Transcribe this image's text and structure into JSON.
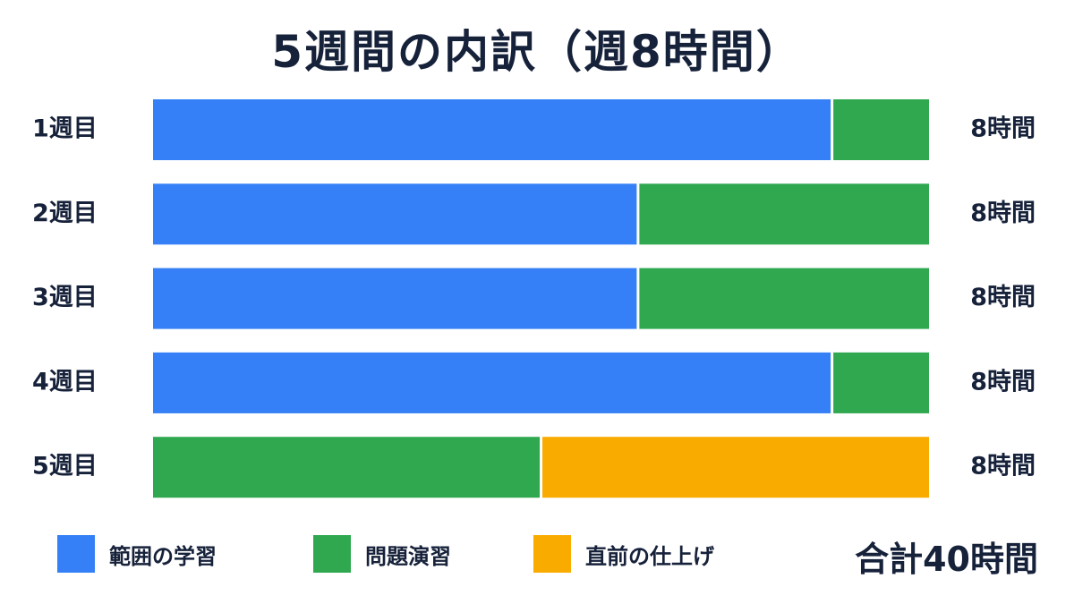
{
  "title": "5週間の内訳（週8時間）",
  "total_label": "合計40時間",
  "colors": {
    "study": "#3580f6",
    "practice": "#2fa84f",
    "finish": "#f9ab00",
    "text": "#16213a"
  },
  "legend": [
    {
      "key": "study",
      "label": "範囲の学習"
    },
    {
      "key": "practice",
      "label": "問題演習"
    },
    {
      "key": "finish",
      "label": "直前の仕上げ"
    }
  ],
  "chart_data": {
    "type": "bar",
    "orientation": "horizontal",
    "stacked": true,
    "title": "5週間の内訳（週8時間）",
    "categories": [
      "1週目",
      "2週目",
      "3週目",
      "4週目",
      "5週目"
    ],
    "series": [
      {
        "name": "範囲の学習",
        "key": "study",
        "values": [
          7,
          5,
          5,
          7,
          0
        ]
      },
      {
        "name": "問題演習",
        "key": "practice",
        "values": [
          1,
          3,
          3,
          1,
          4
        ]
      },
      {
        "name": "直前の仕上げ",
        "key": "finish",
        "values": [
          0,
          0,
          0,
          0,
          4
        ]
      }
    ],
    "totals": [
      "8時間",
      "8時間",
      "8時間",
      "8時間",
      "8時間"
    ],
    "xlim": [
      0,
      8
    ],
    "grid": false,
    "legend_position": "bottom"
  }
}
